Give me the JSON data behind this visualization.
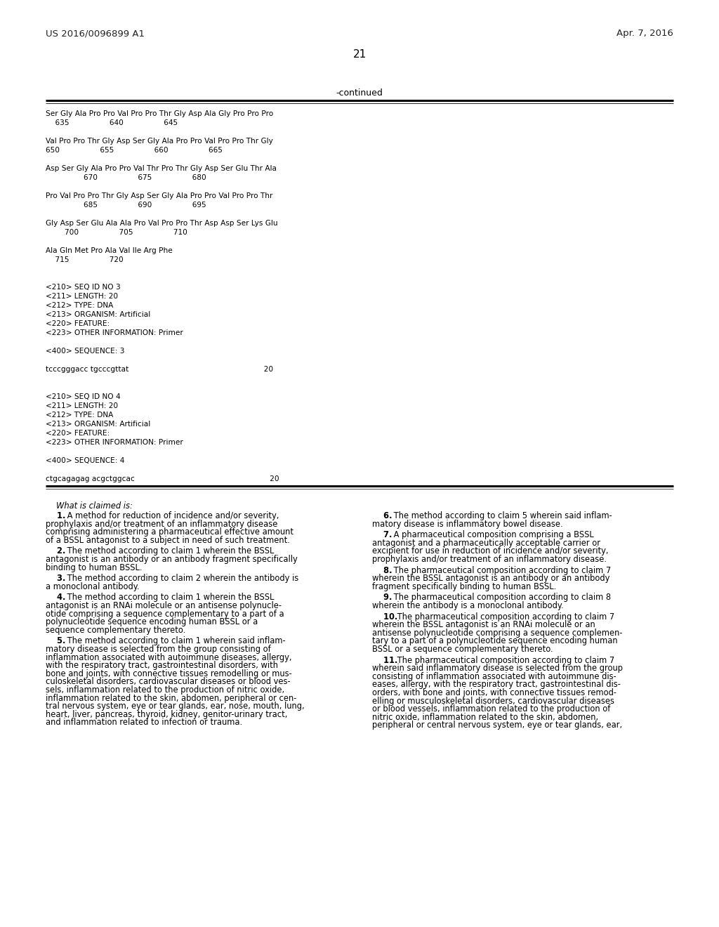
{
  "bg_color": "#ffffff",
  "header_left": "US 2016/0096899 A1",
  "header_right": "Apr. 7, 2016",
  "page_number": "21",
  "continued_label": "-continued",
  "mono_lines": [
    "Ser Gly Ala Pro Pro Val Pro Pro Thr Gly Asp Ala Gly Pro Pro Pro",
    "    635                 640                 645",
    "",
    "Val Pro Pro Thr Gly Asp Ser Gly Ala Pro Pro Val Pro Pro Thr Gly",
    "650                 655                 660                 665",
    "",
    "Asp Ser Gly Ala Pro Pro Val Thr Pro Thr Gly Asp Ser Glu Thr Ala",
    "                670                 675                 680",
    "",
    "Pro Val Pro Pro Thr Gly Asp Ser Gly Ala Pro Pro Val Pro Pro Thr",
    "                685                 690                 695",
    "",
    "Gly Asp Ser Glu Ala Ala Pro Val Pro Pro Thr Asp Asp Ser Lys Glu",
    "        700                 705                 710",
    "",
    "Ala Gln Met Pro Ala Val Ile Arg Phe",
    "    715                 720",
    "",
    "",
    "<210> SEQ ID NO 3",
    "<211> LENGTH: 20",
    "<212> TYPE: DNA",
    "<213> ORGANISM: Artificial",
    "<220> FEATURE:",
    "<223> OTHER INFORMATION: Primer",
    "",
    "<400> SEQUENCE: 3",
    "",
    "tcccgggacc tgcccgttat                                                         20",
    "",
    "",
    "<210> SEQ ID NO 4",
    "<211> LENGTH: 20",
    "<212> TYPE: DNA",
    "<213> ORGANISM: Artificial",
    "<220> FEATURE:",
    "<223> OTHER INFORMATION: Primer",
    "",
    "<400> SEQUENCE: 4",
    "",
    "ctgcagagag acgctggcac                                                         20"
  ],
  "claims_header": "What is claimed is:",
  "left_claims": [
    {
      "num": "1",
      "lines": [
        "    1. A method for reduction of incidence and/or severity,",
        "prophylaxis and/or treatment of an inflammatory disease",
        "comprising administering a pharmaceutical effective amount",
        "of a BSSL antagonist to a subject in need of such treatment."
      ]
    },
    {
      "num": "2",
      "lines": [
        "    2. The method according to claim 1 wherein the BSSL",
        "antagonist is an antibody or an antibody fragment specifically",
        "binding to human BSSL."
      ]
    },
    {
      "num": "3",
      "lines": [
        "    3. The method according to claim 2 wherein the antibody is",
        "a monoclonal antibody."
      ]
    },
    {
      "num": "4",
      "lines": [
        "    4. The method according to claim 1 wherein the BSSL",
        "antagonist is an RNAi molecule or an antisense polynucle-",
        "otide comprising a sequence complementary to a part of a",
        "polynucleotide sequence encoding human BSSL or a",
        "sequence complementary thereto."
      ]
    },
    {
      "num": "5",
      "lines": [
        "    5. The method according to claim 1 wherein said inflam-",
        "matory disease is selected from the group consisting of",
        "inflammation associated with autoimmune diseases, allergy,",
        "with the respiratory tract, gastrointestinal disorders, with",
        "bone and joints, with connective tissues remodelling or mus-",
        "culoskeletal disorders, cardiovascular diseases or blood ves-",
        "sels, inflammation related to the production of nitric oxide,",
        "inflammation related to the skin, abdomen, peripheral or cen-",
        "tral nervous system, eye or tear glands, ear, nose, mouth, lung,",
        "heart, liver, pancreas, thyroid, kidney, genitor-urinary tract,",
        "and inflammation related to infection or trauma."
      ]
    }
  ],
  "right_claims": [
    {
      "num": "6",
      "lines": [
        "    6. The method according to claim 5 wherein said inflam-",
        "matory disease is inflammatory bowel disease."
      ]
    },
    {
      "num": "7",
      "lines": [
        "    7. A pharmaceutical composition comprising a BSSL",
        "antagonist and a pharmaceutically acceptable carrier or",
        "excipient for use in reduction of incidence and/or severity,",
        "prophylaxis and/or treatment of an inflammatory disease."
      ]
    },
    {
      "num": "8",
      "lines": [
        "    8. The pharmaceutical composition according to claim 7",
        "wherein the BSSL antagonist is an antibody or an antibody",
        "fragment specifically binding to human BSSL."
      ]
    },
    {
      "num": "9",
      "lines": [
        "    9. The pharmaceutical composition according to claim 8",
        "wherein the antibody is a monoclonal antibody."
      ]
    },
    {
      "num": "10",
      "lines": [
        "    10. The pharmaceutical composition according to claim 7",
        "wherein the BSSL antagonist is an RNAi molecule or an",
        "antisense polynucleotide comprising a sequence complemen-",
        "tary to a part of a polynucleotide sequence encoding human",
        "BSSL or a sequence complementary thereto."
      ]
    },
    {
      "num": "11",
      "lines": [
        "    11. The pharmaceutical composition according to claim 7",
        "wherein said inflammatory disease is selected from the group",
        "consisting of inflammation associated with autoimmune dis-",
        "eases, allergy, with the respiratory tract, gastrointestinal dis-",
        "orders, with bone and joints, with connective tissues remod-",
        "elling or musculoskeletal disorders, cardiovascular diseases",
        "or blood vessels, inflammation related to the production of",
        "nitric oxide, inflammation related to the skin, abdomen,",
        "peripheral or central nervous system, eye or tear glands, ear,"
      ]
    }
  ],
  "bold_nums": [
    "1",
    "2",
    "3",
    "4",
    "5",
    "6",
    "7",
    "8",
    "9",
    "10",
    "11"
  ]
}
